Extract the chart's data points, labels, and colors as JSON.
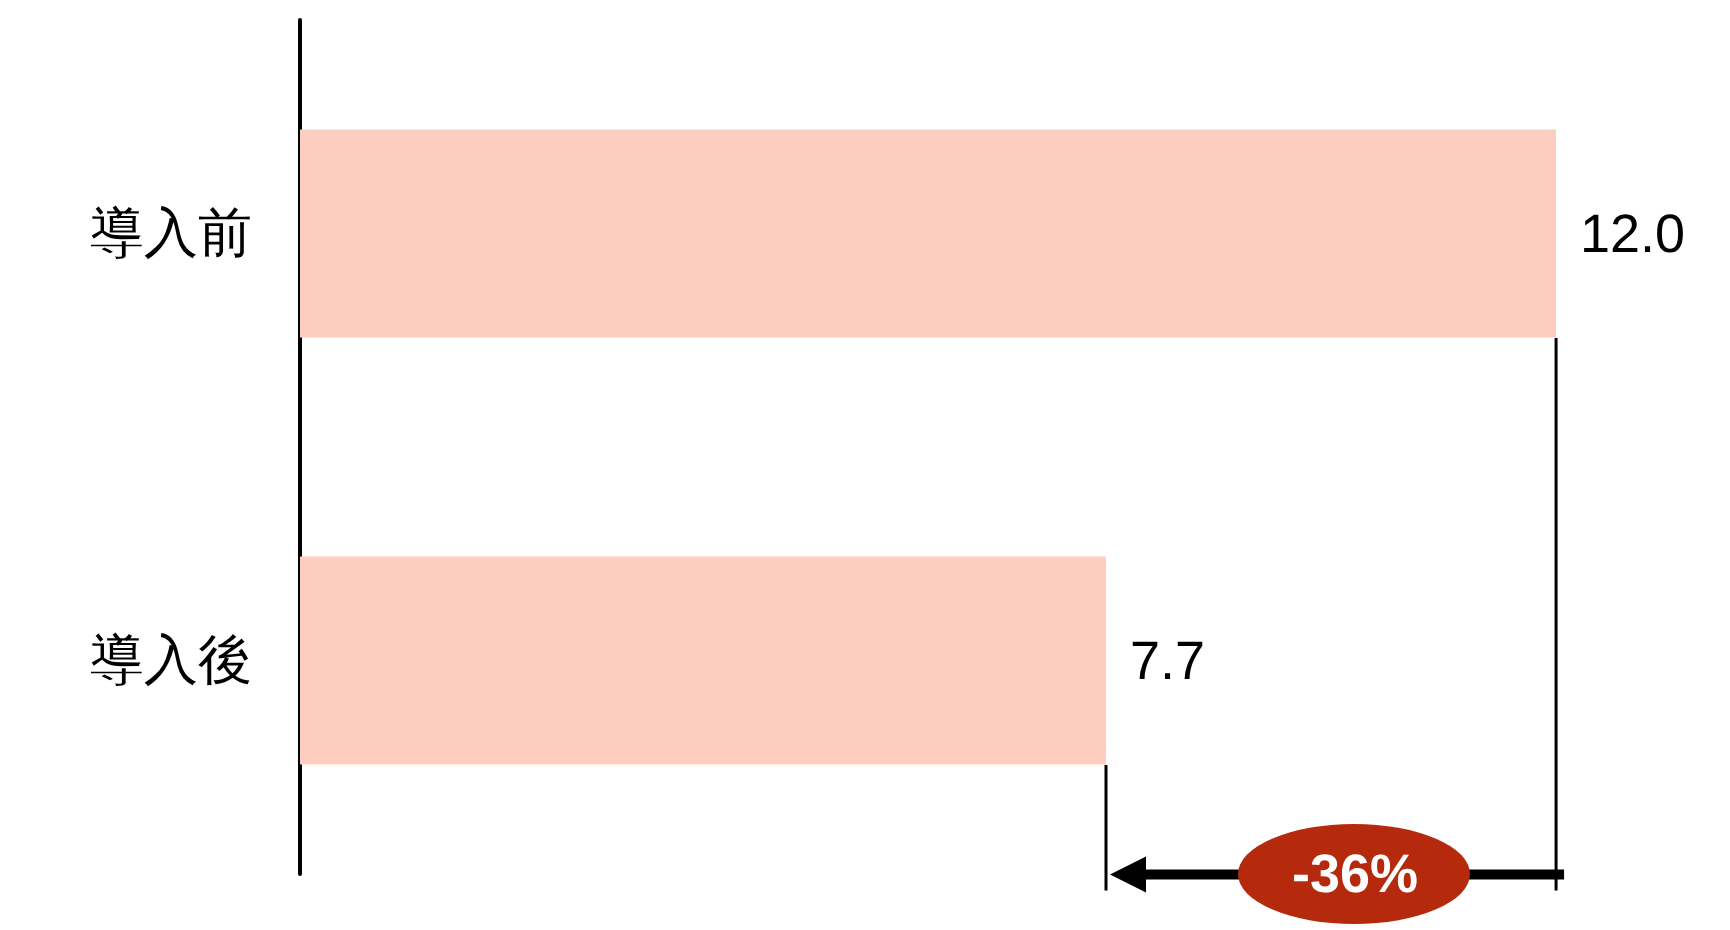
{
  "chart_data": {
    "type": "bar",
    "orientation": "horizontal",
    "categories": [
      "導入前",
      "導入後"
    ],
    "values": [
      12.0,
      7.7
    ],
    "value_labels": [
      "12.0",
      "7.7"
    ],
    "color": "#fdcdbf",
    "annotations": [
      "-36%"
    ]
  }
}
